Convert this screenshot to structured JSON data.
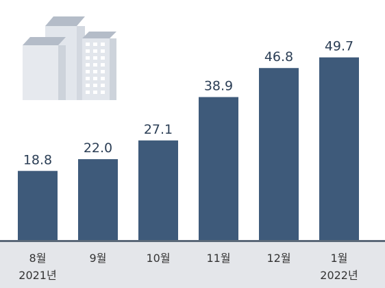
{
  "chart_data": {
    "type": "bar",
    "title": "",
    "xlabel": "",
    "ylabel": "",
    "categories": [
      {
        "month": "8월",
        "year": "2021년"
      },
      {
        "month": "9월",
        "year": ""
      },
      {
        "month": "10월",
        "year": ""
      },
      {
        "month": "11월",
        "year": ""
      },
      {
        "month": "12월",
        "year": ""
      },
      {
        "month": "1월",
        "year": "2022년"
      }
    ],
    "values": [
      18.8,
      22.0,
      27.1,
      38.9,
      46.8,
      49.7
    ],
    "value_labels": [
      "18.8",
      "22.0",
      "27.1",
      "38.9",
      "46.8",
      "49.7"
    ],
    "ylim": [
      0,
      53
    ],
    "grid": false,
    "colors": {
      "bar": "#3e5a7a",
      "axis_band": "#e4e6ea",
      "baseline": "#5a6878",
      "building": "#e2e6ec",
      "building_shade": "#cdd3db",
      "building_roof": "#b4bcc8",
      "window": "#ffffff"
    },
    "decoration": "apartment-buildings"
  }
}
